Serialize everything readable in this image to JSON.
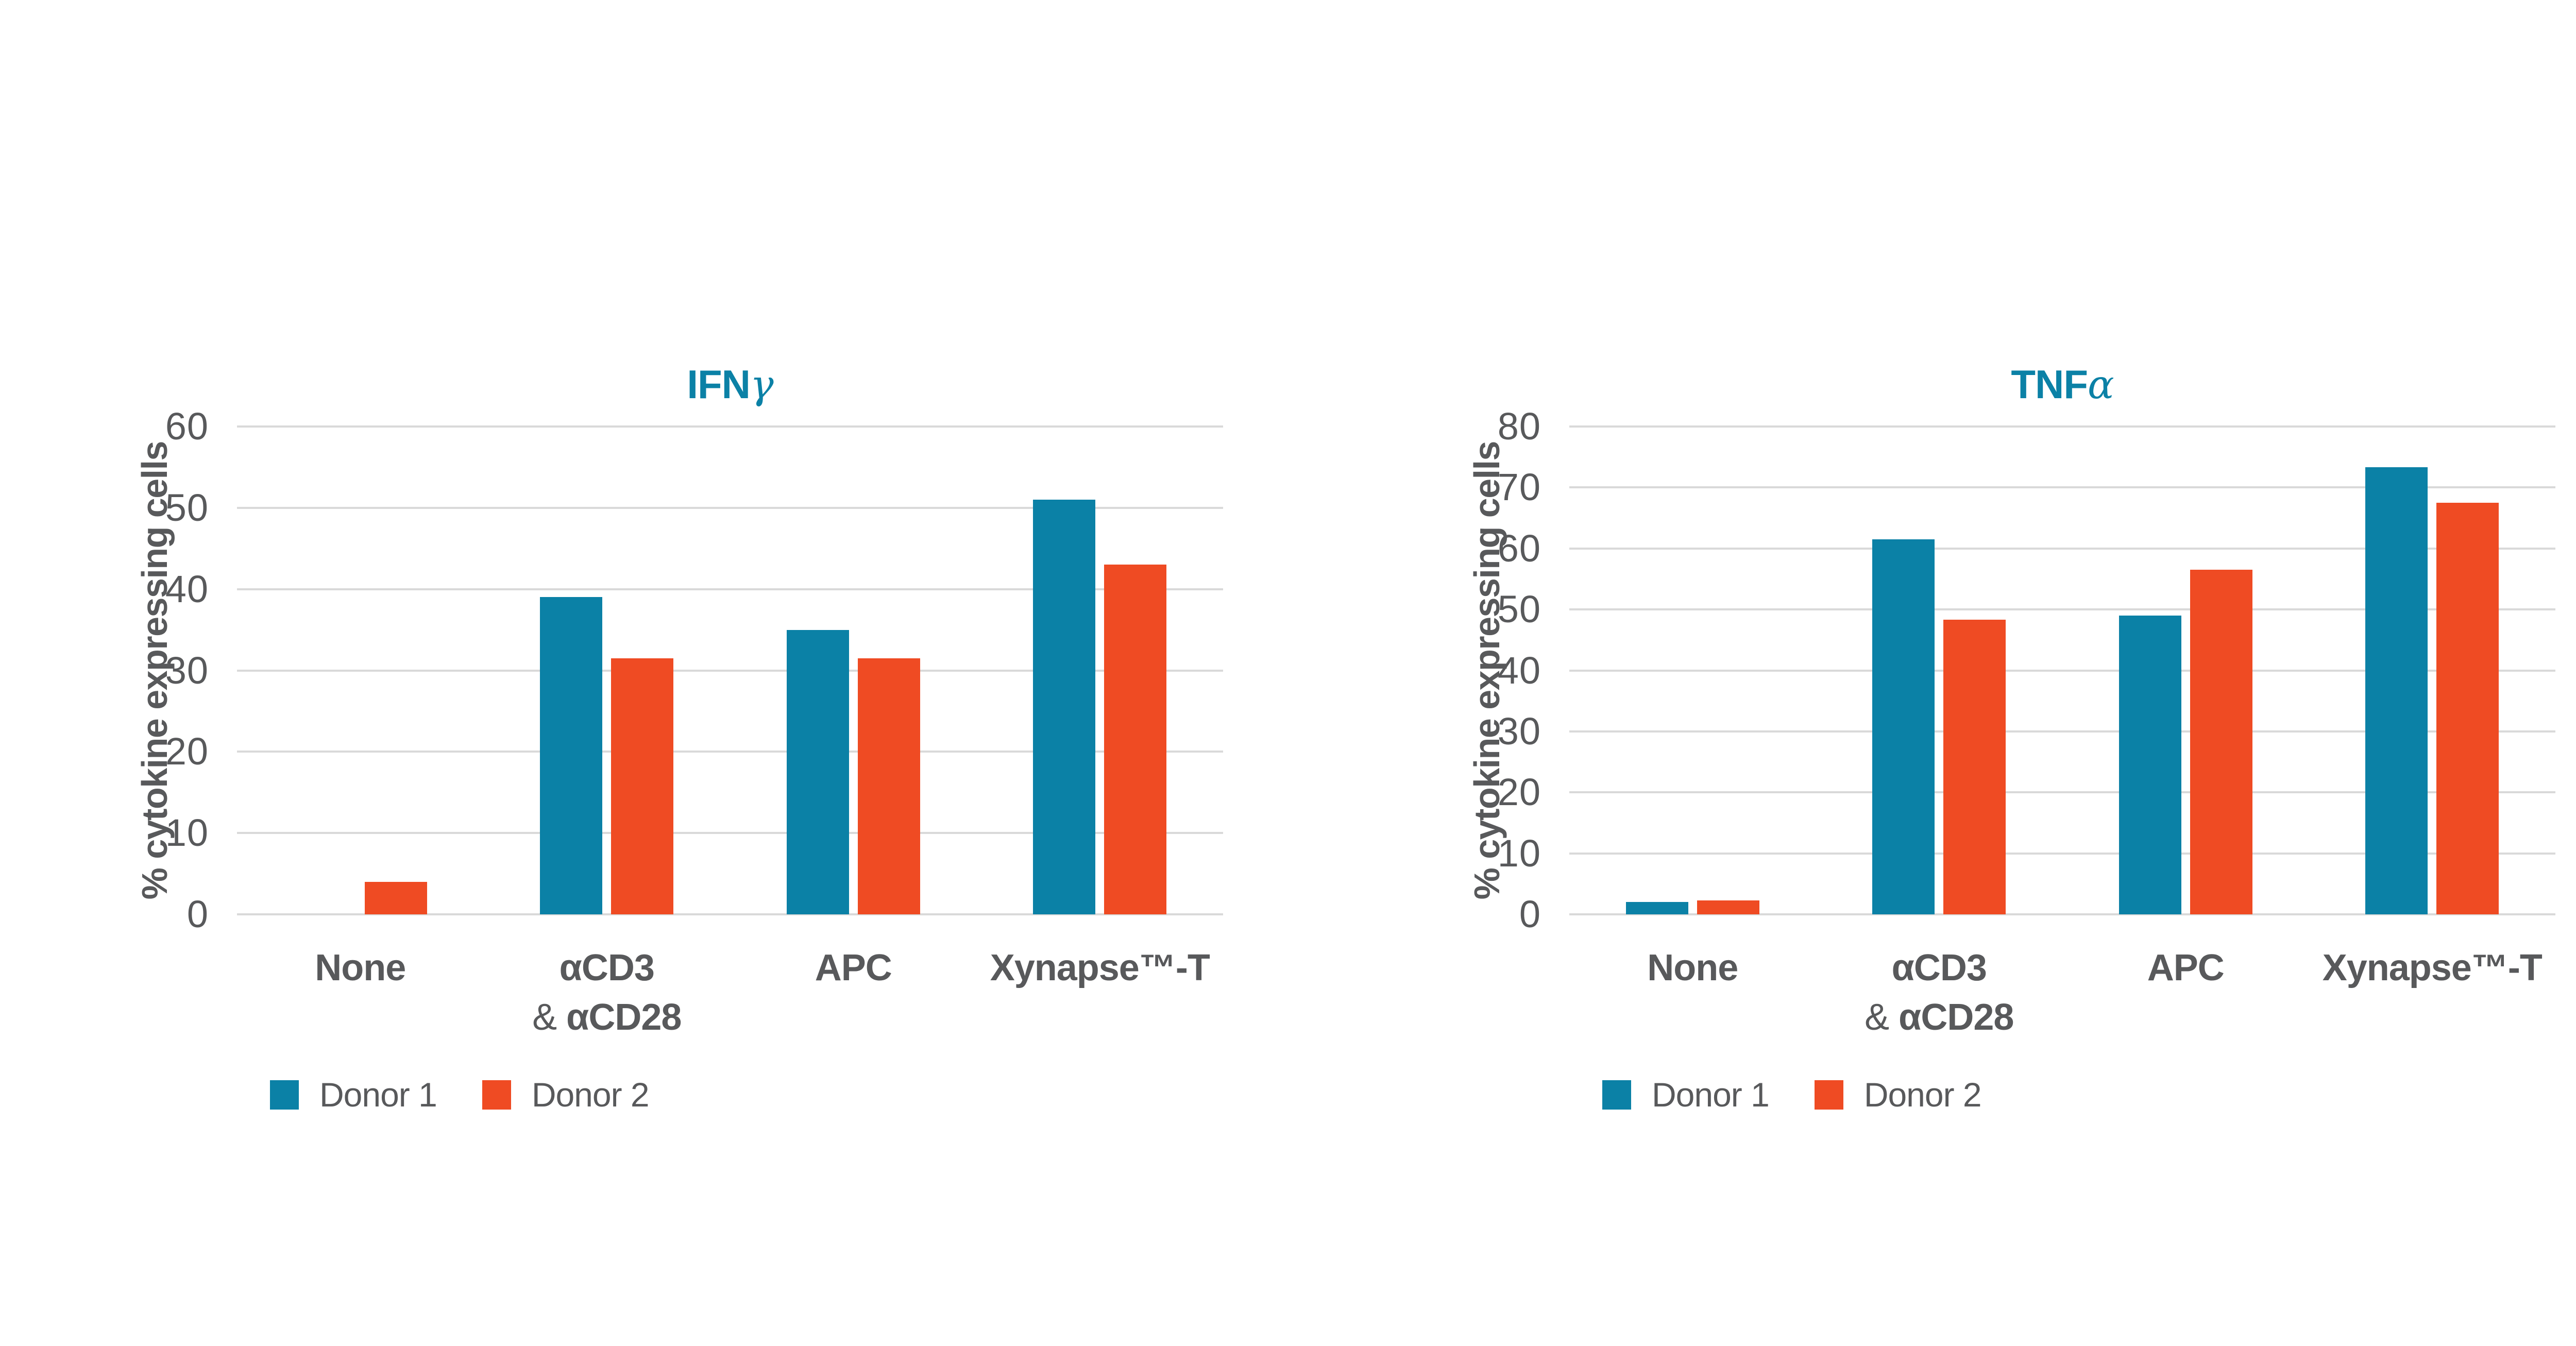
{
  "page": {
    "background_color": "#ffffff"
  },
  "colors": {
    "donor1_teal": "#0B81A6",
    "donor2_orange": "#EF4B23",
    "title_teal": "#0B81A6",
    "text_gray": "#58595B",
    "gridline_gray": "#D9D9D9"
  },
  "legend": {
    "items": [
      {
        "label": "Donor 1",
        "color_key": "donor1_teal"
      },
      {
        "label": "Donor 2",
        "color_key": "donor2_orange"
      }
    ]
  },
  "chart_data": [
    {
      "type": "bar",
      "title": "IFNγ",
      "title_main": "IFN",
      "title_greek": "γ",
      "ylabel": "% cytokine expressing cells",
      "xlabel": "",
      "ylim": [
        0,
        60
      ],
      "ytick_step": 10,
      "yticks": [
        0,
        10,
        20,
        30,
        40,
        50,
        60
      ],
      "grid": true,
      "legend_position": "bottom-left",
      "categories": [
        "None",
        "αCD3 & αCD28",
        "APC",
        "Xynapse™-T"
      ],
      "category_lines": [
        [
          "None"
        ],
        [
          "αCD3",
          "& αCD28"
        ],
        [
          "APC"
        ],
        [
          "Xynapse™-T"
        ]
      ],
      "series": [
        {
          "name": "Donor 1",
          "values": [
            0,
            39,
            35,
            51
          ]
        },
        {
          "name": "Donor 2",
          "values": [
            4,
            31.5,
            31.5,
            43
          ]
        }
      ]
    },
    {
      "type": "bar",
      "title": "TNFα",
      "title_main": "TNF",
      "title_greek": "α",
      "ylabel": "% cytokine expressing cells",
      "xlabel": "",
      "ylim": [
        0,
        80
      ],
      "ytick_step": 10,
      "yticks": [
        0,
        10,
        20,
        30,
        40,
        50,
        60,
        70,
        80
      ],
      "grid": true,
      "legend_position": "bottom-left",
      "categories": [
        "None",
        "αCD3 & αCD28",
        "APC",
        "Xynapse™-T"
      ],
      "category_lines": [
        [
          "None"
        ],
        [
          "αCD3",
          "& αCD28"
        ],
        [
          "APC"
        ],
        [
          "Xynapse™-T"
        ]
      ],
      "series": [
        {
          "name": "Donor 1",
          "values": [
            2,
            61.5,
            49,
            73.3
          ]
        },
        {
          "name": "Donor 2",
          "values": [
            2.3,
            48.3,
            56.5,
            67.5
          ]
        }
      ]
    }
  ]
}
